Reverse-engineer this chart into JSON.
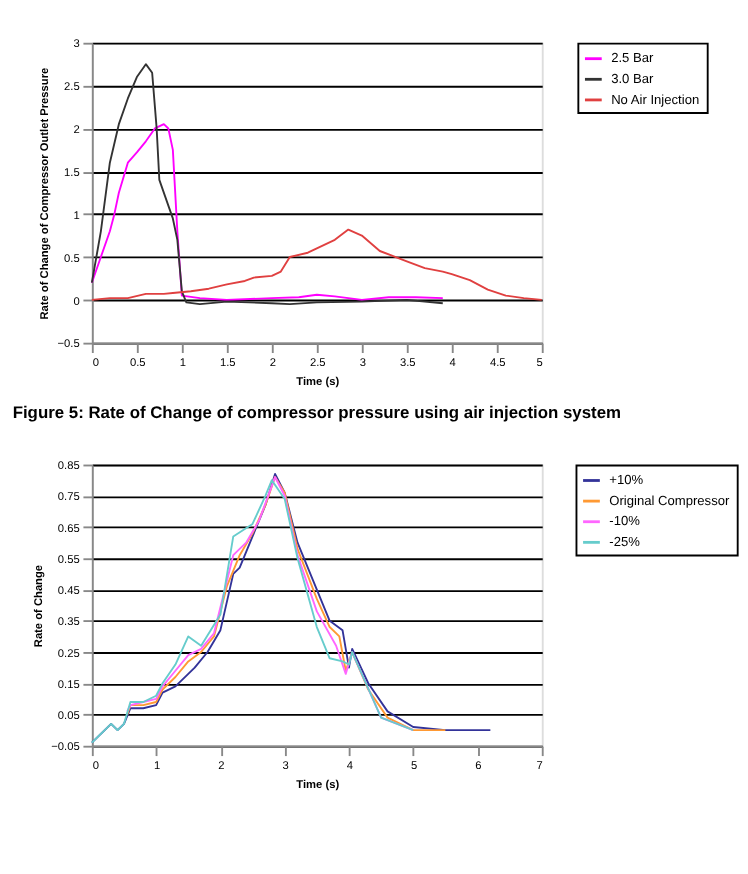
{
  "chart_data": [
    {
      "type": "line",
      "xlabel": "Time (s)",
      "ylabel": "Rate of Change of Compressor Outlet Pressure",
      "annotations": [
        "Figure 5: Rate of Change of compressor pressure using air injection system"
      ],
      "xlim": [
        0,
        5
      ],
      "ylim": [
        -0.5,
        3
      ],
      "xticks": [
        0,
        0.5,
        1,
        1.5,
        2,
        2.5,
        3,
        3.5,
        4,
        4.5,
        5
      ],
      "yticks": [
        -0.5,
        0,
        0.5,
        1,
        1.5,
        2,
        2.5,
        3
      ],
      "grid": "y",
      "legend": "right",
      "marker": "none",
      "line_style": "solid",
      "series": [
        {
          "name": "2.5 Bar",
          "color": "#ff00ff",
          "x": [
            0,
            0.1,
            0.2,
            0.25,
            0.3,
            0.4,
            0.5,
            0.6,
            0.7,
            0.8,
            0.85,
            0.9,
            0.95,
            1.0,
            1.2,
            1.5,
            2,
            2.3,
            2.5,
            2.7,
            3.0,
            3.3,
            3.6,
            3.9
          ],
          "values": [
            0.2,
            0.5,
            0.8,
            1.0,
            1.25,
            1.6,
            1.72,
            1.85,
            2.0,
            2.05,
            2.0,
            1.75,
            0.8,
            0.05,
            0.02,
            0,
            0.02,
            0.03,
            0.06,
            0.04,
            0.0,
            0.03,
            0.03,
            0.02
          ]
        },
        {
          "name": "3.0 Bar",
          "color": "#333333",
          "x": [
            0,
            0.1,
            0.2,
            0.3,
            0.4,
            0.5,
            0.6,
            0.67,
            0.72,
            0.75,
            0.85,
            0.9,
            0.95,
            1.0,
            1.05,
            1.2,
            1.5,
            2,
            2.2,
            2.5,
            3,
            3.5,
            3.9
          ],
          "values": [
            0.2,
            0.8,
            1.6,
            2.05,
            2.35,
            2.6,
            2.75,
            2.65,
            2.0,
            1.4,
            1.1,
            0.95,
            0.7,
            0.1,
            -0.03,
            -0.05,
            -0.02,
            -0.04,
            -0.05,
            -0.03,
            -0.02,
            0.0,
            -0.04
          ]
        },
        {
          "name": "No Air Injection",
          "color": "#e04040",
          "x": [
            0,
            0.2,
            0.4,
            0.6,
            0.8,
            0.9,
            1.1,
            1.3,
            1.5,
            1.7,
            1.8,
            2,
            2.1,
            2.2,
            2.4,
            2.5,
            2.7,
            2.85,
            3.0,
            3.2,
            3.5,
            3.7,
            3.9,
            4.0,
            4.2,
            4.4,
            4.6,
            4.8,
            5
          ],
          "values": [
            0,
            0.02,
            0.02,
            0.07,
            0.07,
            0.08,
            0.1,
            0.13,
            0.18,
            0.22,
            0.26,
            0.28,
            0.33,
            0.5,
            0.55,
            0.6,
            0.7,
            0.82,
            0.75,
            0.57,
            0.45,
            0.37,
            0.33,
            0.3,
            0.23,
            0.12,
            0.05,
            0.02,
            0
          ]
        }
      ]
    },
    {
      "type": "line",
      "xlabel": "Time (s)",
      "ylabel": "Rate of Change",
      "xlim": [
        0,
        7
      ],
      "ylim": [
        -0.05,
        0.85
      ],
      "xticks": [
        0,
        1,
        2,
        3,
        4,
        5,
        6,
        7
      ],
      "yticks": [
        -0.05,
        0.05,
        0.15,
        0.25,
        0.35,
        0.45,
        0.55,
        0.65,
        0.75,
        0.85
      ],
      "grid": "y",
      "legend": "right",
      "marker": "none",
      "line_style": "solid",
      "series": [
        {
          "name": "+10%",
          "color": "#333399",
          "x": [
            0,
            0.2,
            0.3,
            0.4,
            0.5,
            0.6,
            0.8,
            1.0,
            1.1,
            1.3,
            1.5,
            1.6,
            1.8,
            2.0,
            2.2,
            2.3,
            2.5,
            2.7,
            2.85,
            3.0,
            3.2,
            3.5,
            3.7,
            3.9,
            4.0,
            4.05,
            4.3,
            4.6,
            5,
            5.5,
            6.2
          ],
          "values": [
            -0.04,
            0.0,
            0.02,
            0.0,
            0.02,
            0.07,
            0.07,
            0.08,
            0.12,
            0.14,
            0.18,
            0.2,
            0.25,
            0.32,
            0.5,
            0.52,
            0.62,
            0.72,
            0.82,
            0.76,
            0.6,
            0.45,
            0.35,
            0.32,
            0.2,
            0.26,
            0.15,
            0.06,
            0.01,
            0,
            0
          ]
        },
        {
          "name": "Original Compressor",
          "color": "#ff9933",
          "x": [
            0.55,
            0.6,
            0.8,
            1.0,
            1.1,
            1.3,
            1.5,
            1.7,
            1.9,
            2.1,
            2.3,
            2.5,
            2.7,
            2.85,
            3.0,
            3.2,
            3.5,
            3.7,
            3.85,
            3.95,
            4.05,
            4.3,
            4.6,
            5,
            5.5
          ],
          "values": [
            0.05,
            0.08,
            0.08,
            0.09,
            0.13,
            0.17,
            0.22,
            0.25,
            0.3,
            0.46,
            0.56,
            0.63,
            0.72,
            0.81,
            0.76,
            0.58,
            0.42,
            0.33,
            0.3,
            0.19,
            0.25,
            0.13,
            0.04,
            0.0,
            0
          ]
        },
        {
          "name": "-10%",
          "color": "#ff66ff",
          "x": [
            0.55,
            0.6,
            0.8,
            1.0,
            1.1,
            1.3,
            1.5,
            1.7,
            1.9,
            2.2,
            2.4,
            2.6,
            2.85,
            3.0,
            3.2,
            3.5,
            3.8,
            3.95,
            4.05,
            4.5,
            5
          ],
          "values": [
            0.06,
            0.08,
            0.09,
            0.1,
            0.14,
            0.19,
            0.24,
            0.26,
            0.31,
            0.56,
            0.6,
            0.67,
            0.81,
            0.75,
            0.56,
            0.38,
            0.27,
            0.18,
            0.25,
            0.04,
            0
          ]
        },
        {
          "name": "-25%",
          "color": "#66cccc",
          "x": [
            0,
            0.2,
            0.3,
            0.4,
            0.5,
            0.6,
            0.8,
            1.0,
            1.1,
            1.3,
            1.5,
            1.7,
            2.0,
            2.2,
            2.5,
            2.7,
            2.8,
            3.0,
            3.2,
            3.5,
            3.7,
            3.9,
            4.0,
            4.05,
            4.5,
            5
          ],
          "values": [
            -0.04,
            0.0,
            0.02,
            0.0,
            0.02,
            0.09,
            0.09,
            0.11,
            0.15,
            0.21,
            0.3,
            0.27,
            0.37,
            0.62,
            0.66,
            0.75,
            0.8,
            0.74,
            0.55,
            0.33,
            0.23,
            0.22,
            0.21,
            0.25,
            0.04,
            0
          ]
        }
      ]
    }
  ]
}
